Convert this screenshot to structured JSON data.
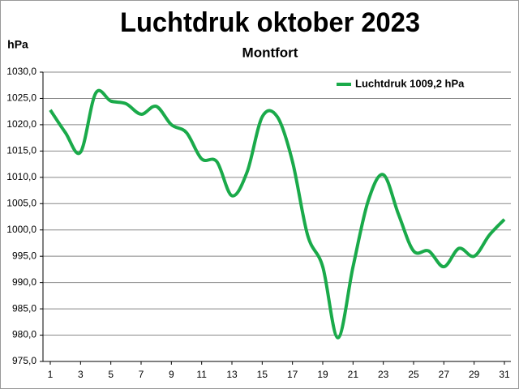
{
  "chart_data": {
    "type": "line",
    "title": "Luchtdruk oktober 2023",
    "subtitle": "Montfort",
    "y_label": "hPa",
    "x": [
      1,
      2,
      3,
      4,
      5,
      6,
      7,
      8,
      9,
      10,
      11,
      12,
      13,
      14,
      15,
      16,
      17,
      18,
      19,
      20,
      21,
      22,
      23,
      24,
      25,
      26,
      27,
      28,
      29,
      30,
      31
    ],
    "series": [
      {
        "name": "Luchtdruk 1009,2 hPa",
        "color": "#1aaa4a",
        "values": [
          1022.8,
          1018.5,
          1014.8,
          1026.0,
          1024.5,
          1024.0,
          1022.0,
          1023.5,
          1020.0,
          1018.5,
          1013.5,
          1013.0,
          1006.5,
          1011.0,
          1021.5,
          1021.5,
          1013.0,
          999.0,
          993.0,
          979.5,
          993.0,
          1005.5,
          1010.5,
          1003.0,
          996.0,
          996.0,
          993.0,
          996.5,
          995.0,
          999.0,
          1002.0
        ]
      }
    ],
    "xlim": [
      1,
      31
    ],
    "xticks": [
      1,
      3,
      5,
      7,
      9,
      11,
      13,
      15,
      17,
      19,
      21,
      23,
      25,
      27,
      29,
      31
    ],
    "ylim": [
      975,
      1030
    ],
    "yticks": [
      {
        "value": 975,
        "label": "975,0"
      },
      {
        "value": 980,
        "label": "980,0"
      },
      {
        "value": 985,
        "label": "985,0"
      },
      {
        "value": 990,
        "label": "990,0"
      },
      {
        "value": 995,
        "label": "995,0"
      },
      {
        "value": 1000,
        "label": "1000,0"
      },
      {
        "value": 1005,
        "label": "1005,0"
      },
      {
        "value": 1010,
        "label": "1010,0"
      },
      {
        "value": 1015,
        "label": "1015,0"
      },
      {
        "value": 1020,
        "label": "1020,0"
      },
      {
        "value": 1025,
        "label": "1025,0"
      },
      {
        "value": 1030,
        "label": "1030,0"
      }
    ],
    "grid": true,
    "legend": "top-right"
  }
}
